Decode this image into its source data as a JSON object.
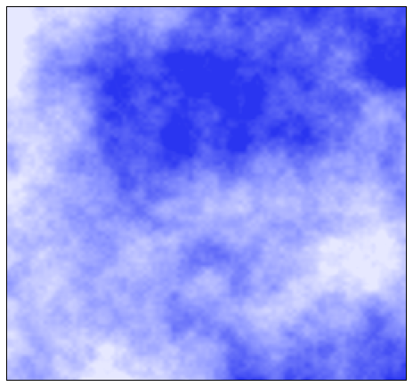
{
  "image": {
    "kind": "fractal-noise-texture",
    "palette": {
      "light": "#e6e8ff",
      "mid": "#8f98ff",
      "dark": "#2a35f0"
    },
    "frame_color": "#000000",
    "background": "#ffffff"
  }
}
